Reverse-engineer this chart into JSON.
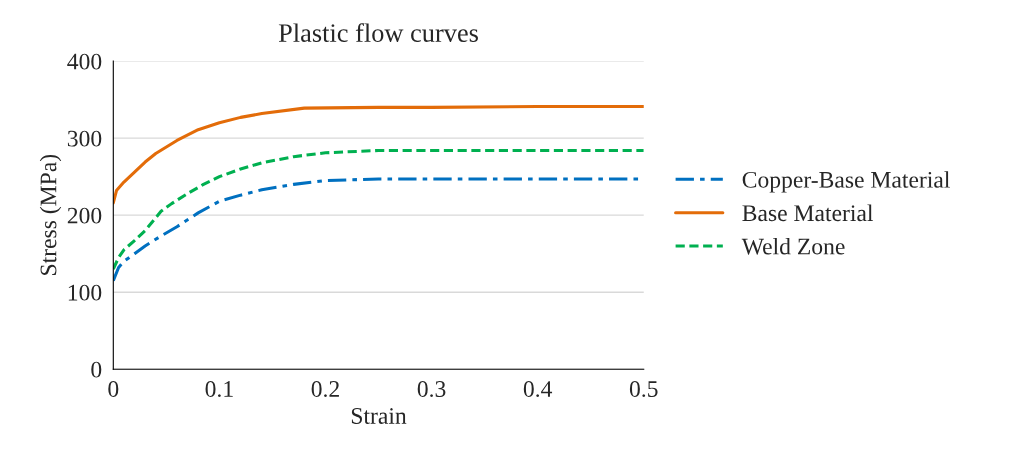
{
  "chart_data": {
    "type": "line",
    "title": "Plastic flow curves",
    "xlabel": "Strain",
    "ylabel": "Stress (MPa)",
    "xlim": [
      0,
      0.5
    ],
    "xticks": [
      0,
      0.1,
      0.2,
      0.3,
      0.4,
      0.5
    ],
    "ylim": [
      0,
      400
    ],
    "yticks": [
      0,
      100,
      200,
      300,
      400
    ],
    "grid": "y",
    "legend": "right",
    "series": [
      {
        "name": "Copper-Base Material",
        "color": "#0070c0",
        "line_style": "dashdot",
        "x": [
          0,
          0.005,
          0.01,
          0.02,
          0.03,
          0.045,
          0.06,
          0.08,
          0.1,
          0.12,
          0.14,
          0.17,
          0.2,
          0.25,
          0.3,
          0.4,
          0.5
        ],
        "values": [
          115,
          132,
          140,
          150,
          160,
          173,
          185,
          203,
          218,
          226,
          233,
          240,
          245,
          247,
          247,
          247,
          247
        ]
      },
      {
        "name": "Base Material",
        "color": "#e36c09",
        "line_style": "solid",
        "x": [
          0,
          0.003,
          0.01,
          0.02,
          0.03,
          0.04,
          0.06,
          0.08,
          0.1,
          0.12,
          0.14,
          0.18,
          0.25,
          0.3,
          0.4,
          0.5
        ],
        "values": [
          216,
          232,
          243,
          256,
          269,
          280,
          297,
          311,
          320,
          327,
          332,
          339,
          340,
          340,
          341,
          341
        ]
      },
      {
        "name": "Weld Zone",
        "color": "#00b050",
        "line_style": "dashed",
        "x": [
          0,
          0.005,
          0.01,
          0.02,
          0.03,
          0.045,
          0.055,
          0.07,
          0.085,
          0.1,
          0.12,
          0.14,
          0.17,
          0.2,
          0.25,
          0.3,
          0.4,
          0.5
        ],
        "values": [
          130,
          145,
          155,
          167,
          180,
          205,
          215,
          228,
          240,
          250,
          260,
          268,
          276,
          281,
          284,
          284,
          284,
          284
        ]
      }
    ]
  }
}
